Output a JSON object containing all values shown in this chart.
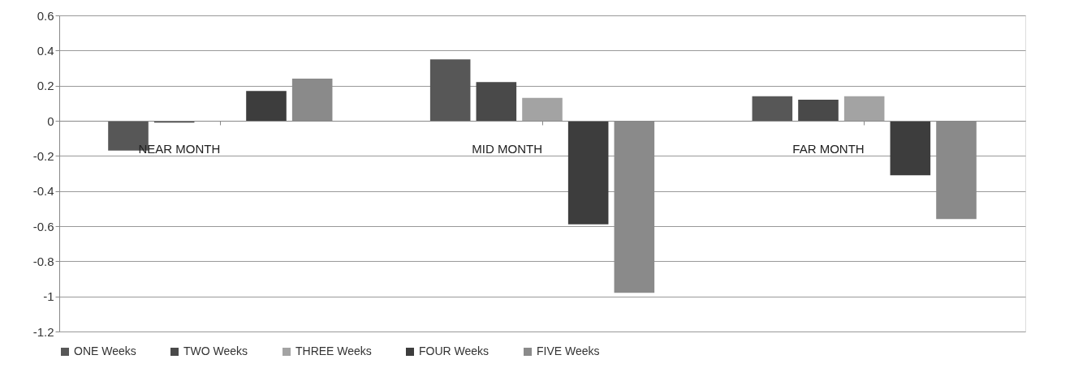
{
  "chart_data": {
    "type": "bar",
    "categories": [
      "NEAR MONTH",
      "MID MONTH",
      "FAR MONTH"
    ],
    "series": [
      {
        "name": "ONE Weeks",
        "color": "#575757",
        "values": [
          -0.17,
          0.35,
          0.14
        ]
      },
      {
        "name": "TWO Weeks",
        "color": "#494949",
        "values": [
          -0.01,
          0.22,
          0.12
        ]
      },
      {
        "name": "THREE Weeks",
        "color": "#a3a3a3",
        "values": [
          0,
          0.13,
          0.14
        ]
      },
      {
        "name": "FOUR Weeks",
        "color": "#3d3d3d",
        "values": [
          0.17,
          -0.59,
          -0.31
        ]
      },
      {
        "name": "FIVE Weeks",
        "color": "#8a8a8a",
        "values": [
          0.24,
          -0.98,
          -0.56
        ]
      }
    ],
    "ylim": [
      -1.2,
      0.6
    ],
    "yticks": [
      -1.2,
      -1,
      -0.8,
      -0.6,
      -0.4,
      -0.2,
      0,
      0.2,
      0.4,
      0.6
    ],
    "grid": "y",
    "legend": "bottom"
  }
}
